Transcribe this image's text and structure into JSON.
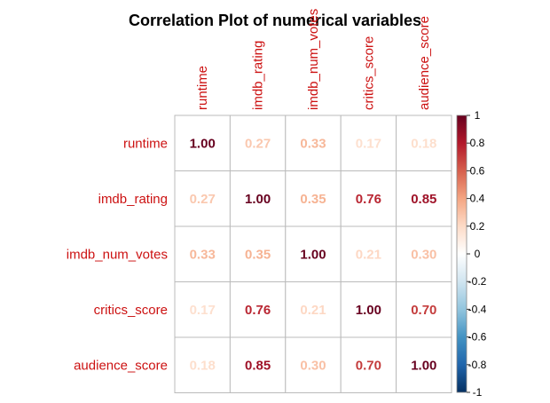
{
  "chart_data": {
    "type": "heatmap",
    "title": "Correlation Plot of numerical variables",
    "variables": [
      "runtime",
      "imdb_rating",
      "imdb_num_votes",
      "critics_score",
      "audience_score"
    ],
    "matrix": [
      [
        1.0,
        0.27,
        0.33,
        0.17,
        0.18
      ],
      [
        0.27,
        1.0,
        0.35,
        0.76,
        0.85
      ],
      [
        0.33,
        0.35,
        1.0,
        0.21,
        0.3
      ],
      [
        0.17,
        0.76,
        0.21,
        1.0,
        0.7
      ],
      [
        0.18,
        0.85,
        0.3,
        0.7,
        1.0
      ]
    ],
    "value_labels": [
      [
        "1.00",
        "0.27",
        "0.33",
        "0.17",
        "0.18"
      ],
      [
        "0.27",
        "1.00",
        "0.35",
        "0.76",
        "0.85"
      ],
      [
        "0.33",
        "0.35",
        "1.00",
        "0.21",
        "0.30"
      ],
      [
        "0.17",
        "0.76",
        "0.21",
        "1.00",
        "0.70"
      ],
      [
        "0.18",
        "0.85",
        "0.30",
        "0.70",
        "1.00"
      ]
    ],
    "color_scale": {
      "range": [
        -1,
        1
      ],
      "ticks": [
        "1",
        "0.8",
        "0.6",
        "0.4",
        "0.2",
        "0",
        "-0.2",
        "-0.4",
        "-0.6",
        "-0.8",
        "-1"
      ],
      "colors": [
        "#67001f",
        "#b2182b",
        "#d6604d",
        "#f4a582",
        "#fddbc7",
        "#ffffff",
        "#d1e5f0",
        "#92c5de",
        "#4393c3",
        "#2166ac",
        "#053061"
      ]
    },
    "label_color": "#cc1111",
    "grid": true,
    "legend_placement": "right"
  }
}
